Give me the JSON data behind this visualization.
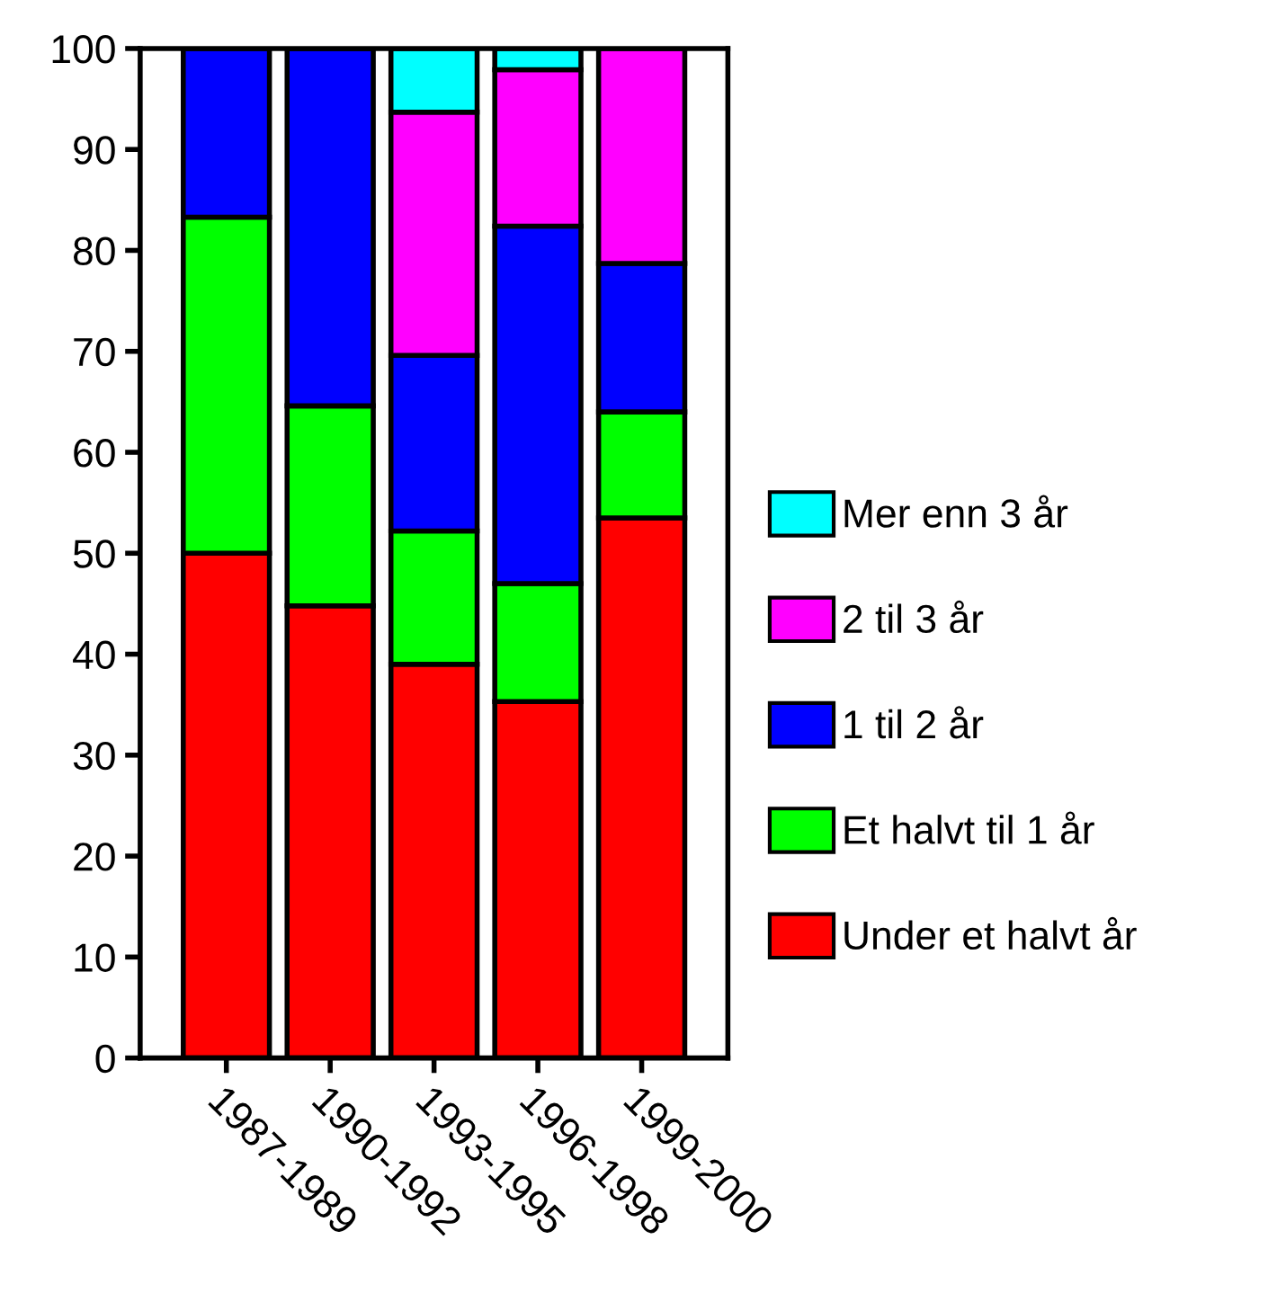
{
  "chart_data": {
    "type": "bar",
    "stacked": true,
    "categories": [
      "1987-1989",
      "1990-1992",
      "1993-1995",
      "1996-1998",
      "1999-2000"
    ],
    "series": [
      {
        "name": "Under et halvt år",
        "color": "#ff0000",
        "values": [
          50,
          44.8,
          39,
          35.3,
          53.5
        ]
      },
      {
        "name": "Et halvt til 1 år",
        "color": "#00ff00",
        "values": [
          33.3,
          19.8,
          13.2,
          11.7,
          10.5
        ]
      },
      {
        "name": "1 til 2 år",
        "color": "#0000ff",
        "values": [
          16.7,
          35.4,
          17.4,
          35.4,
          14.7
        ]
      },
      {
        "name": "2 til 3 år",
        "color": "#ff00ff",
        "values": [
          null,
          null,
          24.1,
          15.5,
          21.3
        ]
      },
      {
        "name": "Mer enn 3 år",
        "color": "#00ffff",
        "values": [
          null,
          null,
          6.3,
          2.1,
          null
        ]
      }
    ],
    "ylim": [
      0,
      100
    ],
    "yticks": [
      0,
      10,
      20,
      30,
      40,
      50,
      60,
      70,
      80,
      90,
      100
    ],
    "grid": false,
    "legend": "right"
  }
}
